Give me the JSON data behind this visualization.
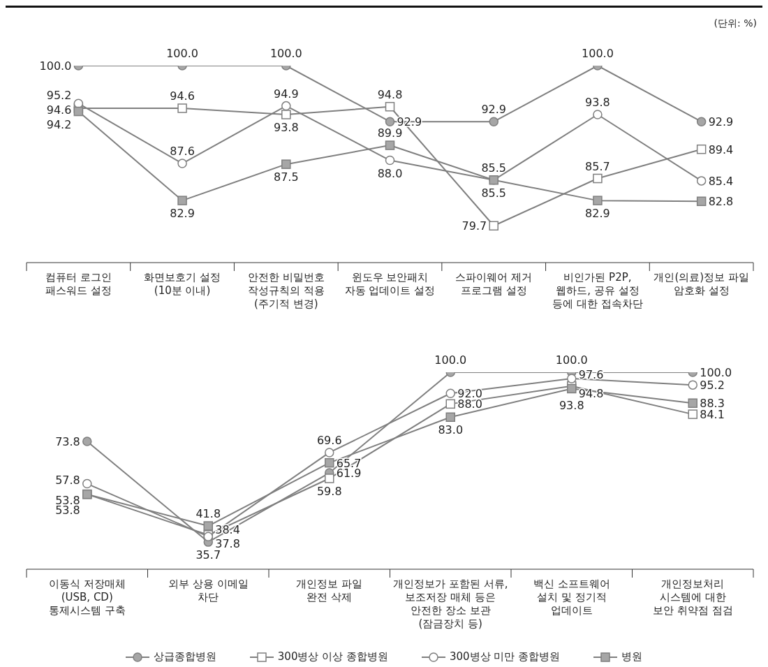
{
  "chart_data": [
    {
      "type": "line",
      "annotations": [
        "(단위: %)"
      ],
      "categories": [
        "컴퓨터 로그인\n패스워드 설정",
        "화면보호기 설정\n(10분 이내)",
        "안전한 비밀번호\n작성규칙의 적용\n(주기적 변경)",
        "윈도우 보안패치\n자동 업데이트 설정",
        "스파이웨어 제거\n프로그램 설정",
        "비인가된 P2P,\n웹하드, 공유 설정\n등에 대한 접속차단",
        "개인(의료)정보 파일\n암호화 설정"
      ],
      "series": [
        {
          "color": "#7f7f7f",
          "marker": "circle",
          "values": [
            100.0,
            100.0,
            100.0,
            92.9,
            92.9,
            100.0,
            92.9
          ],
          "value_labels": [
            "100.0",
            "100.0",
            "100.0",
            "92.9",
            "92.9",
            "100.0",
            "92.9"
          ]
        },
        {
          "color": "#7f7f7f",
          "marker": "square",
          "values": [
            94.6,
            94.6,
            93.8,
            94.8,
            79.7,
            85.7,
            89.4
          ],
          "value_labels": [
            "94.6",
            "94.6",
            "93.8",
            "94.8",
            "79.7",
            "85.7",
            "89.4"
          ]
        },
        {
          "color": "#7f7f7f",
          "marker": "circle",
          "values": [
            95.2,
            87.6,
            94.9,
            88.0,
            85.5,
            93.8,
            85.4
          ],
          "value_labels": [
            "95.2",
            "87.6",
            "94.9",
            "88.0",
            "85.5",
            "93.8",
            "85.4"
          ]
        },
        {
          "color": "#7f7f7f",
          "marker": "square",
          "values": [
            94.2,
            82.9,
            87.5,
            89.9,
            85.5,
            82.9,
            82.8
          ],
          "value_labels": [
            "94.2",
            "82.9",
            "87.5",
            "89.9",
            "85.5",
            "82.9",
            "82.8"
          ]
        }
      ]
    },
    {
      "type": "line",
      "categories": [
        "이동식 저장매체\n(USB, CD)\n통제시스템 구축",
        "외부 상용 이메일\n차단",
        "개인정보 파일\n완전 삭제",
        "개인정보가 포함된 서류,\n보조저장 매체 등은\n안전한 장소 보관\n(잠금장치 등)",
        "백신 소프트웨어\n설치 및 정기적\n업데이트",
        "개인정보처리\n시스템에 대한\n보안 취약점 점검"
      ],
      "series": [
        {
          "name": "상급종합병원",
          "color": "#7f7f7f",
          "marker": "circle",
          "values": [
            73.8,
            35.7,
            61.9,
            100.0,
            100.0,
            100.0
          ],
          "value_labels": [
            "73.8",
            "35.7",
            "61.9",
            "100.0",
            "100.0",
            "100.0"
          ]
        },
        {
          "name": "300병상 이상 종합병원",
          "color": "#7f7f7f",
          "marker": "square",
          "values": [
            53.8,
            38.4,
            59.8,
            88.0,
            94.8,
            84.1
          ],
          "value_labels": [
            "53.8",
            "38.4",
            "59.8",
            "88.0",
            "94.8",
            "84.1"
          ]
        },
        {
          "name": "300병상 미만 종합병원",
          "color": "#7f7f7f",
          "marker": "circle",
          "values": [
            57.8,
            37.8,
            69.6,
            92.0,
            97.6,
            95.2
          ],
          "value_labels": [
            "57.8",
            "37.8",
            "69.6",
            "92.0",
            "97.6",
            "95.2"
          ]
        },
        {
          "name": "병원",
          "color": "#7f7f7f",
          "marker": "square",
          "values": [
            53.8,
            41.8,
            65.7,
            83.0,
            93.8,
            88.3
          ],
          "value_labels": [
            "53.8",
            "41.8",
            "65.7",
            "83.0",
            "93.8",
            "88.3"
          ]
        }
      ],
      "legend": "bottom"
    }
  ]
}
